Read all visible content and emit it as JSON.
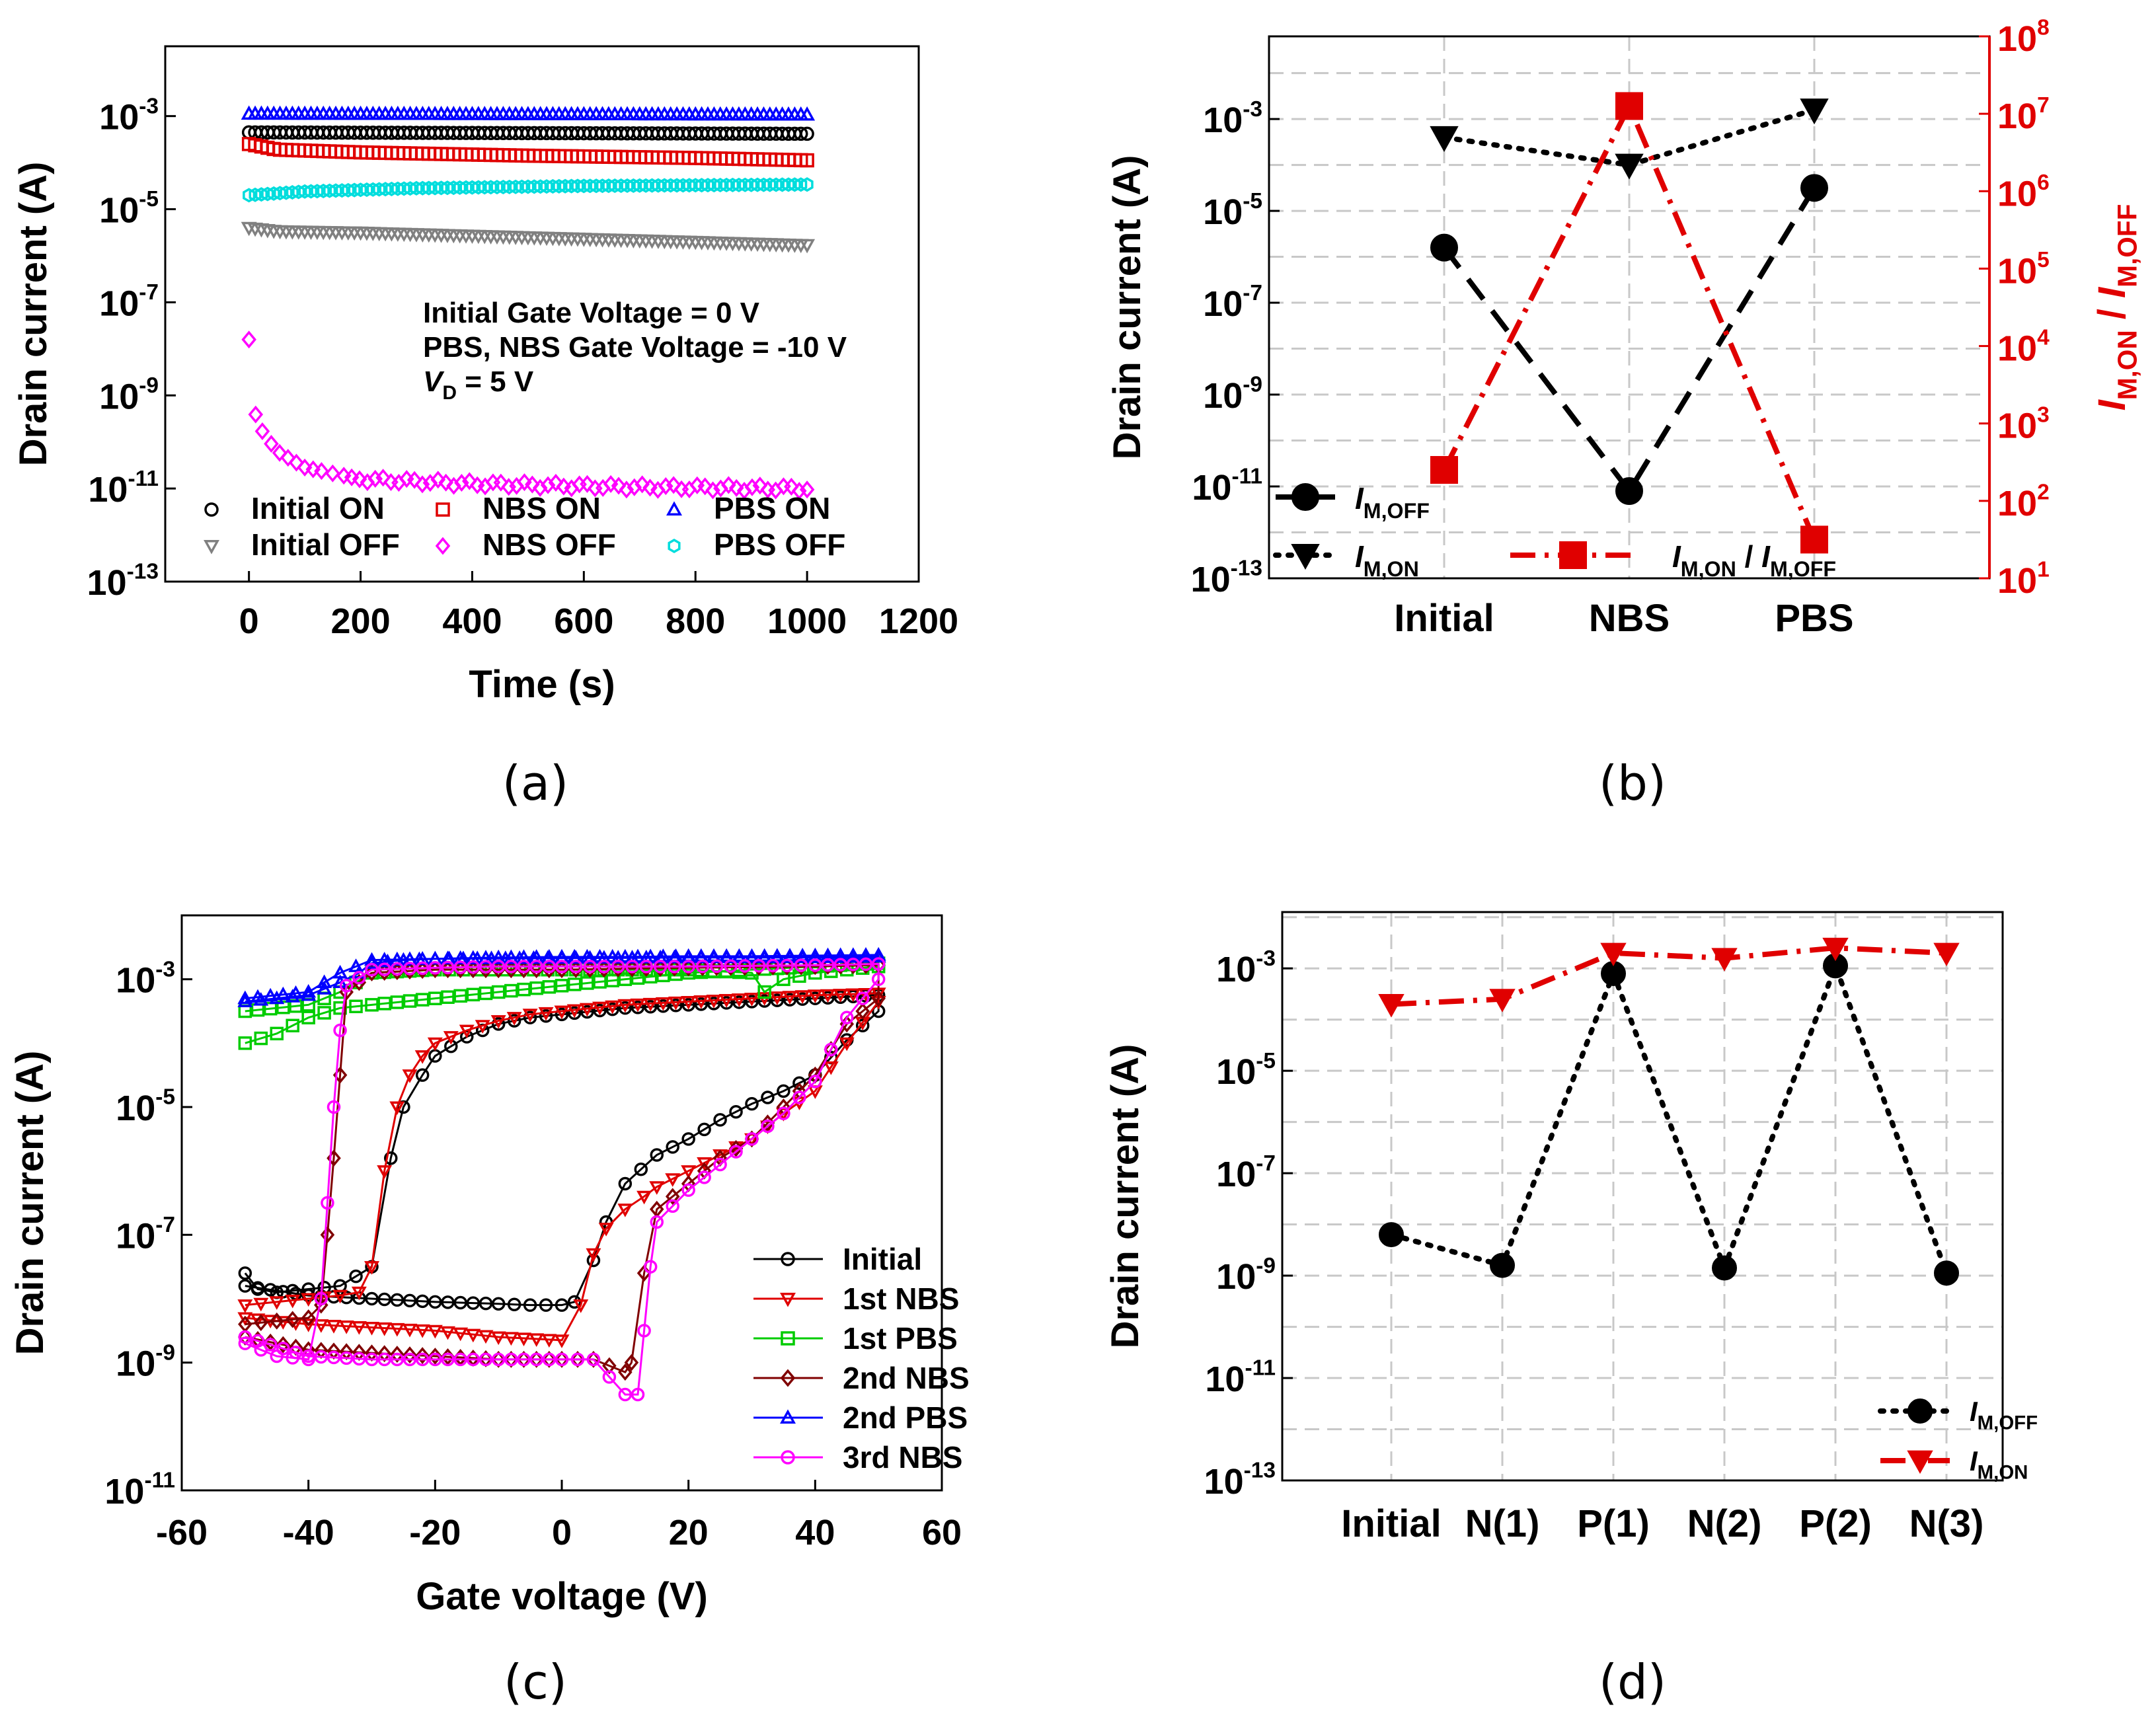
{
  "chart_data": [
    {
      "id": "a",
      "caption": "(a)",
      "type": "scatter",
      "xlabel": "Time (s)",
      "ylabel": "Drain current (A)",
      "xlim": [
        -150,
        1200
      ],
      "ylog_exp_range": [
        -13,
        -1.5
      ],
      "xticks": [
        0,
        200,
        400,
        600,
        800,
        1000,
        1200
      ],
      "yticks_exp": [
        -13,
        -11,
        -9,
        -7,
        -5,
        -3
      ],
      "annotation": {
        "line1": "Initial Gate Voltage = 0 V",
        "line2": "PBS, NBS Gate Voltage = -10 V",
        "line3_v": "V",
        "line3_sub": "D",
        "line3_rest": " = 5 V"
      },
      "series": [
        {
          "name": "Initial ON",
          "color": "#000000",
          "marker": "circle",
          "x": [
            0,
            1000
          ],
          "log_y": [
            -3.35,
            -3.38
          ]
        },
        {
          "name": "Initial OFF",
          "color": "#808080",
          "marker": "triangle-down",
          "x": [
            0,
            50,
            200,
            500,
            800,
            1000
          ],
          "log_y": [
            -5.4,
            -5.47,
            -5.5,
            -5.6,
            -5.7,
            -5.77
          ]
        },
        {
          "name": "NBS ON",
          "color": "#e00000",
          "marker": "square",
          "x": [
            0,
            50,
            200,
            500,
            800,
            1000
          ],
          "log_y": [
            -3.6,
            -3.72,
            -3.78,
            -3.85,
            -3.9,
            -3.95
          ]
        },
        {
          "name": "NBS OFF",
          "color": "#ff00ff",
          "marker": "diamond",
          "x": [
            0,
            10,
            25,
            50,
            100,
            200,
            400,
            700,
            1000
          ],
          "log_y": [
            -7.8,
            -9.35,
            -9.8,
            -10.2,
            -10.55,
            -10.8,
            -10.9,
            -10.97,
            -11.0
          ]
        },
        {
          "name": "PBS ON",
          "color": "#0000ff",
          "marker": "triangle-up",
          "x": [
            0,
            1000
          ],
          "log_y": [
            -2.95,
            -2.97
          ]
        },
        {
          "name": "PBS OFF",
          "color": "#00dddd",
          "marker": "hexagon",
          "x": [
            0,
            100,
            300,
            600,
            1000
          ],
          "log_y": [
            -4.7,
            -4.62,
            -4.55,
            -4.5,
            -4.47
          ]
        }
      ]
    },
    {
      "id": "b",
      "caption": "(b)",
      "type": "line",
      "categories": [
        "Initial",
        "NBS",
        "PBS"
      ],
      "ylabel": "Drain current (A)",
      "ylog_exp_range": [
        -13,
        -1.2
      ],
      "yticks_exp": [
        -13,
        -11,
        -9,
        -7,
        -5,
        -3
      ],
      "y2label_main": "I",
      "y2label_sub1": "M,ON",
      "y2label_mid": " / I",
      "y2label_sub2": "M,OFF",
      "y2log_exp_range": [
        1,
        8
      ],
      "y2ticks_exp": [
        1,
        2,
        3,
        4,
        5,
        6,
        7,
        8
      ],
      "series": [
        {
          "name_main": "I",
          "name_sub": "M,OFF",
          "axis": "left",
          "color": "#000000",
          "style": "dash",
          "marker": "circle",
          "log_values": [
            -5.8,
            -11.1,
            -4.5
          ]
        },
        {
          "name_main": "I",
          "name_sub": "M,ON",
          "axis": "left",
          "color": "#000000",
          "style": "dot",
          "marker": "triangle-down",
          "log_values": [
            -3.4,
            -4.0,
            -2.8
          ]
        },
        {
          "name_main": "I",
          "name_sub": "M,ON",
          "name_mid": " / I",
          "name_sub2": "M,OFF",
          "axis": "right",
          "color": "#e00000",
          "style": "dashdot",
          "marker": "square",
          "log_values": [
            2.4,
            7.1,
            1.5
          ]
        }
      ]
    },
    {
      "id": "c",
      "caption": "(c)",
      "type": "line",
      "xlabel": "Gate voltage (V)",
      "ylabel": "Drain current (A)",
      "xlim": [
        -60,
        60
      ],
      "ylog_exp_range": [
        -11,
        -2
      ],
      "xticks": [
        -60,
        -40,
        -20,
        0,
        20,
        40,
        60
      ],
      "yticks_exp": [
        -11,
        -9,
        -7,
        -5,
        -3
      ],
      "series": [
        {
          "name": "Initial",
          "color": "#000000",
          "marker": "circle",
          "x": [
            -50,
            -48,
            -45,
            -40,
            -35,
            -30,
            -27,
            -25,
            -22,
            -20,
            -15,
            -10,
            -5,
            0,
            10,
            20,
            30,
            40,
            50,
            50,
            45,
            40,
            35,
            30,
            25,
            20,
            15,
            10,
            7,
            5,
            2,
            0,
            -5,
            -10,
            -20,
            -30,
            -40,
            -50
          ],
          "log_y": [
            -7.6,
            -7.85,
            -7.9,
            -7.85,
            -7.8,
            -7.5,
            -5.8,
            -5.0,
            -4.5,
            -4.2,
            -3.9,
            -3.7,
            -3.6,
            -3.55,
            -3.45,
            -3.4,
            -3.35,
            -3.3,
            -3.25,
            -3.5,
            -3.95,
            -4.5,
            -4.75,
            -4.95,
            -5.2,
            -5.5,
            -5.75,
            -6.2,
            -6.8,
            -7.4,
            -8.05,
            -8.1,
            -8.1,
            -8.08,
            -8.05,
            -8.0,
            -7.95,
            -7.8
          ]
        },
        {
          "name": "1st NBS",
          "color": "#e00000",
          "marker": "triangle-down",
          "x": [
            -50,
            -45,
            -40,
            -35,
            -32,
            -30,
            -28,
            -26,
            -24,
            -22,
            -20,
            -15,
            -10,
            -5,
            0,
            10,
            20,
            30,
            40,
            50,
            50,
            45,
            40,
            35,
            30,
            25,
            20,
            15,
            13,
            10,
            7,
            5,
            3,
            0,
            -10,
            -20,
            -30,
            -40,
            -50
          ],
          "log_y": [
            -8.1,
            -8.05,
            -8.0,
            -7.95,
            -7.9,
            -7.5,
            -6.0,
            -5.0,
            -4.5,
            -4.2,
            -4.0,
            -3.8,
            -3.65,
            -3.55,
            -3.5,
            -3.4,
            -3.35,
            -3.3,
            -3.25,
            -3.22,
            -3.35,
            -4.0,
            -4.75,
            -5.1,
            -5.5,
            -5.75,
            -6.0,
            -6.25,
            -6.4,
            -6.6,
            -6.9,
            -7.3,
            -8.1,
            -8.65,
            -8.6,
            -8.5,
            -8.45,
            -8.4,
            -8.3
          ]
        },
        {
          "name": "1st PBS",
          "color": "#00cc00",
          "marker": "square",
          "x": [
            -50,
            -45,
            -40,
            -35,
            -30,
            -20,
            -10,
            0,
            10,
            20,
            30,
            40,
            50,
            50,
            45,
            40,
            35,
            32,
            30,
            20,
            0,
            -20,
            -30,
            -35,
            -40,
            -50
          ],
          "log_y": [
            -4.0,
            -3.85,
            -3.6,
            -3.45,
            -3.4,
            -3.3,
            -3.2,
            -3.1,
            -3.0,
            -2.9,
            -2.85,
            -2.8,
            -2.75,
            -2.8,
            -2.85,
            -2.9,
            -3.0,
            -3.2,
            -2.9,
            -2.85,
            -2.85,
            -2.85,
            -2.9,
            -3.2,
            -3.4,
            -3.5
          ]
        },
        {
          "name": "2nd NBS",
          "color": "#800000",
          "marker": "diamond",
          "x": [
            -50,
            -45,
            -40,
            -38,
            -37,
            -36,
            -35,
            -34,
            -30,
            -20,
            -10,
            0,
            20,
            40,
            50,
            50,
            45,
            40,
            35,
            30,
            25,
            20,
            15,
            13,
            11,
            10,
            5,
            0,
            -10,
            -20,
            -30,
            -40,
            -50
          ],
          "log_y": [
            -8.4,
            -8.35,
            -8.3,
            -8.1,
            -7.0,
            -5.8,
            -4.5,
            -3.2,
            -2.9,
            -2.85,
            -2.85,
            -2.85,
            -2.82,
            -2.8,
            -2.78,
            -3.3,
            -3.7,
            -4.5,
            -5.0,
            -5.5,
            -5.8,
            -6.2,
            -6.6,
            -7.6,
            -9.0,
            -9.15,
            -8.95,
            -8.95,
            -8.95,
            -8.9,
            -8.85,
            -8.8,
            -8.6
          ]
        },
        {
          "name": "2nd PBS",
          "color": "#0000ff",
          "marker": "triangle-up",
          "x": [
            -50,
            -45,
            -40,
            -35,
            -32,
            -30,
            -25,
            -20,
            -10,
            0,
            10,
            20,
            30,
            40,
            50,
            50,
            40,
            30,
            20,
            0,
            -20,
            -30,
            -35,
            -40,
            -50
          ],
          "log_y": [
            -3.35,
            -3.3,
            -3.25,
            -3.05,
            -2.9,
            -2.75,
            -2.7,
            -2.68,
            -2.66,
            -2.65,
            -2.65,
            -2.64,
            -2.64,
            -2.63,
            -2.62,
            -2.65,
            -2.66,
            -2.66,
            -2.66,
            -2.67,
            -2.68,
            -2.7,
            -2.9,
            -3.2,
            -3.3
          ]
        },
        {
          "name": "3rd NBS",
          "color": "#ff00ff",
          "marker": "circle",
          "x": [
            -50,
            -45,
            -40,
            -38,
            -37,
            -36,
            -35,
            -34,
            -30,
            -20,
            -10,
            0,
            20,
            40,
            50,
            50,
            45,
            40,
            35,
            30,
            25,
            20,
            15,
            14,
            13,
            12,
            10,
            5,
            0,
            -10,
            -20,
            -30,
            -40,
            -50
          ],
          "log_y": [
            -8.7,
            -8.9,
            -8.95,
            -8.0,
            -6.5,
            -5.0,
            -3.8,
            -3.1,
            -2.85,
            -2.82,
            -2.8,
            -2.8,
            -2.8,
            -2.78,
            -2.76,
            -3.0,
            -3.6,
            -4.6,
            -5.1,
            -5.5,
            -5.9,
            -6.3,
            -6.8,
            -7.5,
            -8.5,
            -9.5,
            -9.5,
            -8.95,
            -8.95,
            -8.95,
            -8.95,
            -8.95,
            -8.9,
            -8.6
          ]
        }
      ]
    },
    {
      "id": "d",
      "caption": "(d)",
      "type": "line",
      "categories": [
        "Initial",
        "N(1)",
        "P(1)",
        "N(2)",
        "P(2)",
        "N(3)"
      ],
      "ylabel": "Drain current (A)",
      "ylog_exp_range": [
        -13,
        -1.9
      ],
      "yticks_exp": [
        -13,
        -11,
        -9,
        -7,
        -5,
        -3
      ],
      "series": [
        {
          "name_main": "I",
          "name_sub": "M,OFF",
          "color": "#000000",
          "style": "dot",
          "marker": "circle",
          "log_values": [
            -8.2,
            -8.8,
            -3.1,
            -8.85,
            -2.95,
            -8.95
          ]
        },
        {
          "name_main": "I",
          "name_sub": "M,ON",
          "color": "#e00000",
          "style": "dashdot",
          "marker": "triangle-down",
          "log_values": [
            -3.7,
            -3.6,
            -2.7,
            -2.8,
            -2.6,
            -2.7
          ]
        }
      ]
    }
  ]
}
